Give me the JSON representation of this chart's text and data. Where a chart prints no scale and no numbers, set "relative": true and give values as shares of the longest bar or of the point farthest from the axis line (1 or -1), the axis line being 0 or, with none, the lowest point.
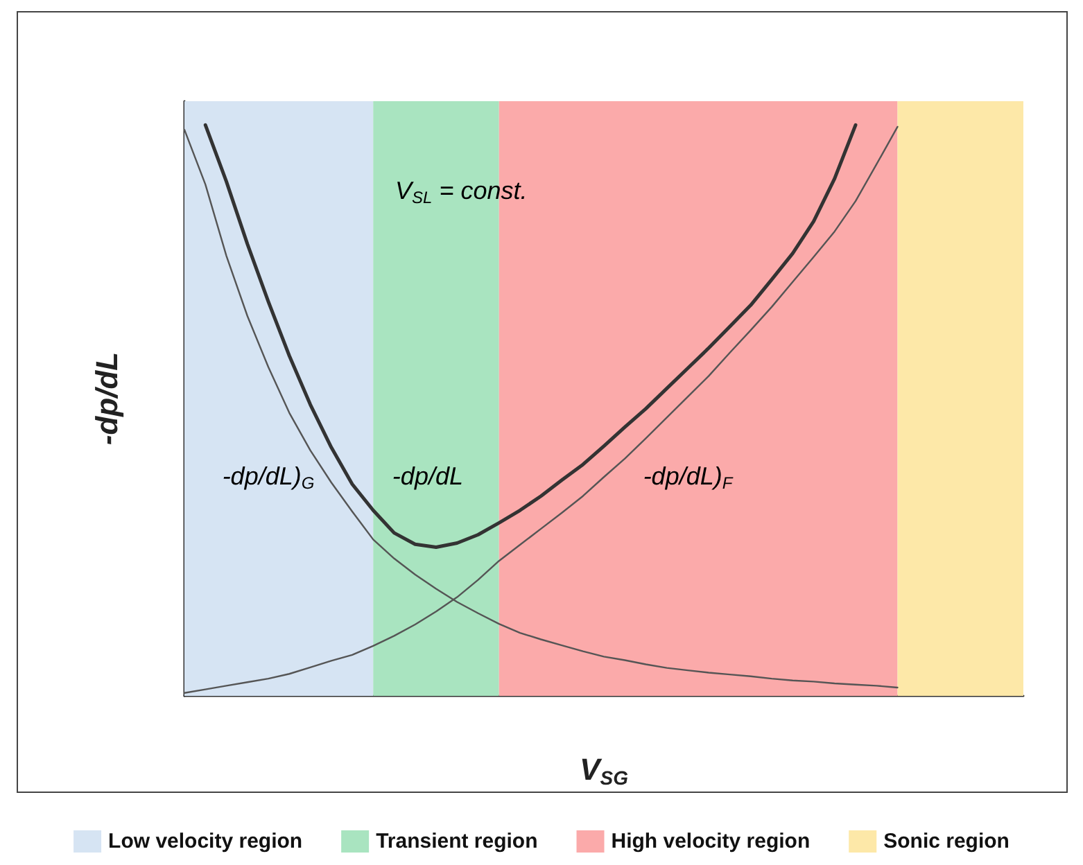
{
  "chart_data": {
    "type": "line",
    "relative": true,
    "xlabel": "V$_{SG}$",
    "ylabel": "-dp/dL",
    "categories": [
      null,
      null,
      null,
      null,
      null,
      null,
      null,
      null,
      null,
      null,
      null,
      null,
      null,
      null,
      null,
      null,
      null,
      null,
      null,
      null,
      null,
      null,
      null,
      null,
      null,
      null,
      null,
      null,
      null,
      null,
      null,
      null,
      null,
      null,
      null,
      null,
      null,
      null,
      null,
      null,
      null
    ],
    "grid": false,
    "legend": "bottom",
    "marker": "none",
    "line_style": "solid",
    "series": [
      {
        "type": "area",
        "name": "Low velocity region",
        "color": "#d6e4f3",
        "values": [
          1,
          1,
          1,
          1,
          1,
          1,
          1,
          1,
          1,
          1,
          null,
          null,
          null,
          null,
          null,
          null,
          null,
          null,
          null,
          null,
          null,
          null,
          null,
          null,
          null,
          null,
          null,
          null,
          null,
          null,
          null,
          null,
          null,
          null,
          null,
          null,
          null,
          null,
          null,
          null,
          null
        ]
      },
      {
        "type": "area",
        "name": "Transient region",
        "color": "#a9e4c0",
        "values": [
          null,
          null,
          null,
          null,
          null,
          null,
          null,
          null,
          null,
          1,
          1,
          1,
          1,
          1,
          1,
          1,
          null,
          null,
          null,
          null,
          null,
          null,
          null,
          null,
          null,
          null,
          null,
          null,
          null,
          null,
          null,
          null,
          null,
          null,
          null,
          null,
          null,
          null,
          null,
          null,
          null
        ]
      },
      {
        "type": "area",
        "name": "High velocity region",
        "color": "#fbaaaa",
        "values": [
          null,
          null,
          null,
          null,
          null,
          null,
          null,
          null,
          null,
          null,
          null,
          null,
          null,
          null,
          null,
          1,
          1,
          1,
          1,
          1,
          1,
          1,
          1,
          1,
          1,
          1,
          1,
          1,
          1,
          1,
          1,
          1,
          1,
          1,
          1,
          null,
          null,
          null,
          null,
          null,
          null
        ]
      },
      {
        "type": "area",
        "name": "Sonic region",
        "color": "#fde8a8",
        "values": [
          null,
          null,
          null,
          null,
          null,
          null,
          null,
          null,
          null,
          null,
          null,
          null,
          null,
          null,
          null,
          null,
          null,
          null,
          null,
          null,
          null,
          null,
          null,
          null,
          null,
          null,
          null,
          null,
          null,
          null,
          null,
          null,
          null,
          null,
          1,
          1,
          1,
          1,
          1,
          1,
          1
        ]
      },
      {
        "color": "#333333",
        "values": [
          null,
          0.96,
          0.865,
          0.76,
          0.663,
          0.572,
          0.49,
          0.418,
          0.356,
          0.312,
          0.274,
          0.255,
          0.25,
          0.257,
          0.271,
          0.291,
          0.312,
          0.336,
          0.363,
          0.389,
          0.42,
          0.452,
          0.483,
          0.517,
          0.551,
          0.585,
          0.621,
          0.657,
          0.7,
          0.744,
          0.798,
          0.87,
          0.96,
          null,
          null,
          null,
          null,
          null,
          null,
          null,
          null
        ]
      },
      {
        "color": "#555555",
        "values": [
          0.952,
          0.86,
          0.74,
          0.639,
          0.553,
          0.476,
          0.413,
          0.359,
          0.31,
          0.263,
          0.231,
          0.204,
          0.18,
          0.158,
          0.139,
          0.121,
          0.106,
          0.095,
          0.085,
          0.075,
          0.066,
          0.06,
          0.053,
          0.047,
          0.043,
          0.039,
          0.036,
          0.033,
          0.029,
          0.026,
          0.024,
          0.021,
          0.019,
          0.017,
          0.014,
          null,
          null,
          null,
          null,
          null,
          null
        ]
      },
      {
        "color": "#555555",
        "values": [
          0.005,
          0.011,
          0.017,
          0.023,
          0.029,
          0.037,
          0.048,
          0.059,
          0.069,
          0.084,
          0.101,
          0.12,
          0.142,
          0.166,
          0.195,
          0.227,
          0.254,
          0.281,
          0.308,
          0.336,
          0.368,
          0.399,
          0.433,
          0.468,
          0.503,
          0.538,
          0.577,
          0.615,
          0.654,
          0.696,
          0.738,
          0.781,
          0.832,
          0.894,
          0.957,
          null,
          null,
          null,
          null,
          null,
          null
        ]
      }
    ],
    "annotations": [
      "V$_{SL}$ = const.",
      "-dp/dL",
      "-dp/dL)$_{G}$",
      "-dp/dL)$_{F}$"
    ]
  }
}
